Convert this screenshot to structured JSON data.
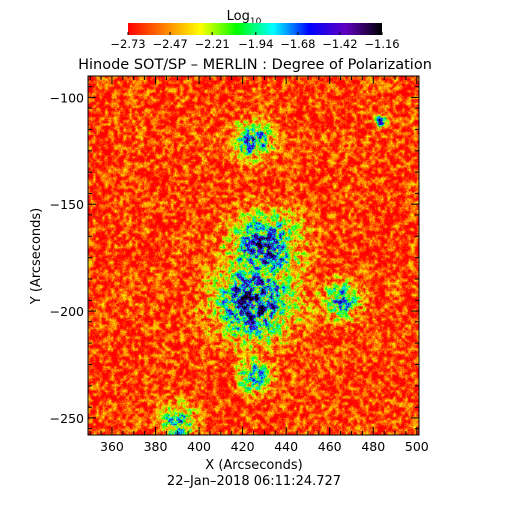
{
  "chart_data": {
    "type": "heatmap",
    "title": "Hinode SOT/SP – MERLIN : Degree of Polarization",
    "xlabel": "X (Arcseconds)",
    "ylabel": "Y (Arcseconds)",
    "timestamp": "22–Jan–2018 06:11:24.727",
    "xlim": [
      349,
      501
    ],
    "ylim": [
      -258,
      -90
    ],
    "x_ticks": [
      360,
      380,
      400,
      420,
      440,
      460,
      480,
      500
    ],
    "x_tick_labels": [
      "360",
      "380",
      "400",
      "420",
      "440",
      "460",
      "480",
      "500"
    ],
    "y_ticks": [
      -100,
      -150,
      -200,
      -250
    ],
    "y_tick_labels": [
      "−100",
      "−150",
      "−200",
      "−250"
    ],
    "colorbar": {
      "title": "Log",
      "title_sub": "10",
      "min": -2.73,
      "max": -1.16,
      "tick_values": [
        -2.73,
        -2.47,
        -2.21,
        -1.94,
        -1.68,
        -1.42,
        -1.16
      ],
      "tick_labels": [
        "−2.73",
        "−2.47",
        "−2.21",
        "−1.94",
        "−1.68",
        "−1.42",
        "−1.16"
      ],
      "colors": [
        "#ff0000",
        "#ff8000",
        "#ffff00",
        "#00ff00",
        "#00ffff",
        "#0000ff",
        "#6000c0",
        "#000000"
      ]
    },
    "background_level": -2.62,
    "features": [
      {
        "name": "central-polarized-region",
        "x": 425,
        "y": -195,
        "peak_level": -1.45
      },
      {
        "name": "polarized-band",
        "x": 430,
        "y": -170,
        "peak_level": -1.55
      },
      {
        "name": "lower-patch",
        "x": 425,
        "y": -230,
        "peak_level": -1.9
      },
      {
        "name": "upper-patch",
        "x": 425,
        "y": -120,
        "peak_level": -1.7
      },
      {
        "name": "right-patch",
        "x": 465,
        "y": -195,
        "peak_level": -1.8
      },
      {
        "name": "bottom-left-patch",
        "x": 390,
        "y": -252,
        "peak_level": -1.85
      },
      {
        "name": "top-right-spot",
        "x": 483,
        "y": -111,
        "peak_level": -1.6
      }
    ]
  }
}
